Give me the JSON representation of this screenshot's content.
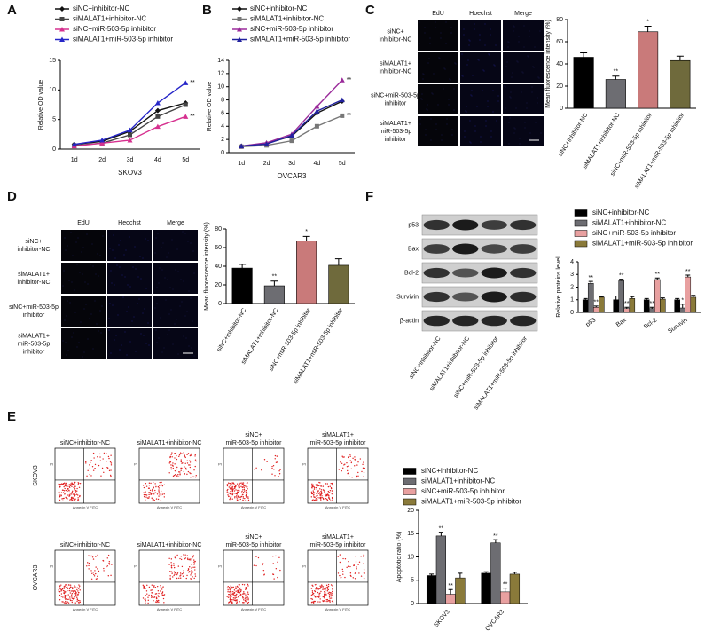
{
  "panel_labels": [
    "A",
    "B",
    "C",
    "D",
    "E",
    "F"
  ],
  "chart_data": [
    {
      "type": "line",
      "x_label": "SKOV3",
      "y_label": "Relative OD value",
      "categories": [
        "1d",
        "2d",
        "3d",
        "4d",
        "5d"
      ],
      "ylim": [
        0,
        15
      ],
      "yticks": [
        0,
        5,
        10,
        15
      ],
      "series": [
        {
          "name": "siNC+inhibitor-NC",
          "color": "#111111",
          "marker": "diamond",
          "values": [
            0.8,
            1.3,
            3,
            6.5,
            7.8
          ],
          "end_label": null
        },
        {
          "name": "siMALAT1+inhibitor-NC",
          "color": "#444444",
          "marker": "square",
          "values": [
            0.6,
            1,
            2.4,
            5.5,
            7.5
          ],
          "end_label": null
        },
        {
          "name": "siNC+miR-503-5p inhibitor",
          "color": "#d6308f",
          "marker": "triangle",
          "values": [
            0.5,
            1,
            1.5,
            3.8,
            5.5
          ],
          "end_label": "**"
        },
        {
          "name": "siMALAT1+miR-503-5p inhibitor",
          "color": "#2626c8",
          "marker": "triangle",
          "values": [
            0.8,
            1.5,
            3.2,
            7.8,
            11.2
          ],
          "end_label": "**"
        }
      ]
    },
    {
      "type": "line",
      "x_label": "OVCAR3",
      "y_label": "Relative OD value",
      "categories": [
        "1d",
        "2d",
        "3d",
        "4d",
        "5d"
      ],
      "ylim": [
        0,
        14
      ],
      "yticks": [
        0,
        2,
        4,
        6,
        8,
        10,
        12,
        14
      ],
      "series": [
        {
          "name": "siNC+inhibitor-NC",
          "color": "#111111",
          "marker": "diamond",
          "values": [
            1,
            1.4,
            2.5,
            6,
            7.8
          ],
          "end_label": null
        },
        {
          "name": "siMALAT1+inhibitor-NC",
          "color": "#777777",
          "marker": "square",
          "values": [
            0.9,
            1.1,
            1.8,
            4,
            5.6
          ],
          "end_label": "**"
        },
        {
          "name": "siNC+miR-503-5p inhibitor",
          "color": "#9a2a9a",
          "marker": "triangle",
          "values": [
            1,
            1.5,
            2.8,
            7,
            11
          ],
          "end_label": "**"
        },
        {
          "name": "siMALAT1+miR-503-5p inhibitor",
          "color": "#22229f",
          "marker": "triangle",
          "values": [
            1,
            1.3,
            2.6,
            6.3,
            8
          ],
          "end_label": null
        }
      ]
    },
    {
      "type": "bar",
      "y_label": "Mean fluorescence intensity (%)",
      "categories": [
        "siNC+inhibitor-NC",
        "siMALAT1+inhibitor-NC",
        "siNC+miR-503-5p inhibitor",
        "siMALAT1+miR-503-5p inhibitor"
      ],
      "values": [
        46,
        26,
        69,
        43
      ],
      "errors": [
        4,
        3,
        5,
        4
      ],
      "significance": [
        null,
        "**",
        "*",
        null
      ],
      "colors": [
        "#000000",
        "#6d6d72",
        "#c97a7a",
        "#6f6a3c"
      ],
      "ylim": [
        0,
        80
      ],
      "yticks": [
        0,
        20,
        40,
        60,
        80
      ]
    },
    {
      "type": "bar",
      "y_label": "Mean fluorescence intensity (%)",
      "categories": [
        "siNC+inhibitor-NC",
        "siMALAT1+inhibitor-NC",
        "siNC+miR-503-5p inhibitor",
        "siMALAT1+miR-503-5p inhibitor"
      ],
      "values": [
        38,
        19,
        67,
        41
      ],
      "errors": [
        4,
        5,
        5,
        7
      ],
      "significance": [
        null,
        "**",
        "*",
        null
      ],
      "colors": [
        "#000000",
        "#6d6d72",
        "#c97a7a",
        "#6f6a3c"
      ],
      "ylim": [
        0,
        80
      ],
      "yticks": [
        0,
        20,
        40,
        60,
        80
      ]
    },
    {
      "type": "grouped_bar",
      "y_label": "Relative proteins level",
      "categories": [
        "p53",
        "Bax",
        "Bcl-2",
        "Survivin"
      ],
      "ylim": [
        0,
        4
      ],
      "yticks": [
        0,
        1,
        2,
        3,
        4
      ],
      "series": [
        {
          "name": "siNC+inhibitor-NC",
          "color": "#000000",
          "values": [
            1,
            1,
            1,
            1
          ],
          "errors": [
            0.1,
            0.3,
            0.1,
            0.1
          ],
          "significance": [
            null,
            null,
            null,
            null
          ]
        },
        {
          "name": "siMALAT1+inhibitor-NC",
          "color": "#6d6d72",
          "values": [
            2.3,
            2.5,
            0.3,
            0.35
          ],
          "errors": [
            0.15,
            0.12,
            0.1,
            0.3
          ],
          "significance": [
            "**",
            "**",
            "**",
            "*"
          ]
        },
        {
          "name": "siNC+miR-503-5p inhibitor",
          "color": "#e8a0a0",
          "values": [
            0.4,
            0.3,
            2.6,
            2.8
          ],
          "errors": [
            0.1,
            0.1,
            0.12,
            0.15
          ],
          "significance": [
            "**",
            "**",
            "**",
            "**"
          ]
        },
        {
          "name": "siMALAT1+miR-503-5p inhibitor",
          "color": "#8a7a3a",
          "values": [
            1.2,
            1.1,
            1.05,
            1.2
          ],
          "errors": [
            0.05,
            0.15,
            0.1,
            0.15
          ],
          "significance": [
            null,
            null,
            null,
            null
          ]
        }
      ]
    },
    {
      "type": "grouped_bar",
      "y_label": "Apoptotic ratio (%)",
      "categories": [
        "SKOV3",
        "OVCAR3"
      ],
      "ylim": [
        0,
        20
      ],
      "yticks": [
        0,
        5,
        10,
        15,
        20
      ],
      "series": [
        {
          "name": "siNC+inhibitor-NC",
          "color": "#000000",
          "values": [
            6,
            6.5
          ],
          "errors": [
            0.3,
            0.3
          ],
          "significance": [
            null,
            null
          ]
        },
        {
          "name": "siMALAT1+inhibitor-NC",
          "color": "#6d6d72",
          "values": [
            14.5,
            13
          ],
          "errors": [
            0.8,
            0.7
          ],
          "significance": [
            "**",
            "**"
          ]
        },
        {
          "name": "siNC+miR-503-5p inhibitor",
          "color": "#e8a0a0",
          "values": [
            2,
            2.5
          ],
          "errors": [
            1,
            0.8
          ],
          "significance": [
            "**",
            "**"
          ]
        },
        {
          "name": "siMALAT1+miR-503-5p inhibitor",
          "color": "#8a7a3a",
          "values": [
            5.5,
            6.3
          ],
          "errors": [
            1,
            0.4
          ],
          "significance": [
            null,
            null
          ]
        }
      ]
    }
  ],
  "image_grids": [
    {
      "columns": [
        "EdU",
        "Hoechst",
        "Merge"
      ],
      "rows": [
        [
          "siNC+",
          "inhibitor-NC"
        ],
        [
          "siMALAT1+",
          "inhibitor-NC"
        ],
        [
          "siNC+miR-503-5p",
          "inhibitor"
        ],
        [
          "siMALAT1+",
          "miR-503-5p",
          "inhibitor"
        ]
      ]
    },
    {
      "columns": [
        "EdU",
        "Heochst",
        "Merge"
      ],
      "rows": [
        [
          "siNC+",
          "inhibitor-NC"
        ],
        [
          "siMALAT1+",
          "inhibitor-NC"
        ],
        [
          "siNC+miR-503-5p",
          "inhibitor"
        ],
        [
          "siMALAT1+",
          "miR-503-5p",
          "inhibitor"
        ]
      ]
    }
  ],
  "western_blot": {
    "rows": [
      "p53",
      "Bax",
      "Bcl-2",
      "Survivin",
      "β-actin"
    ],
    "columns": [
      "siNC+inhibitor-NC",
      "siMALAT1+inhibitor-NC",
      "siNC+miR-503-5p inhibitor",
      "siMALAT1+miR-503-5p inhibitor"
    ]
  },
  "flow_cytometry": {
    "rows": [
      "SKOV3",
      "OVCAR3"
    ],
    "columns": [
      [
        "siNC+inhibitor-NC"
      ],
      [
        "siMALAT1+inhibitor-NC"
      ],
      [
        "siNC+",
        "miR-503-5p inhibitor"
      ],
      [
        "siMALAT1+",
        "miR-503-5p inhibitor"
      ]
    ],
    "x_label": "Annexin V FITC",
    "y_label": "PI"
  }
}
